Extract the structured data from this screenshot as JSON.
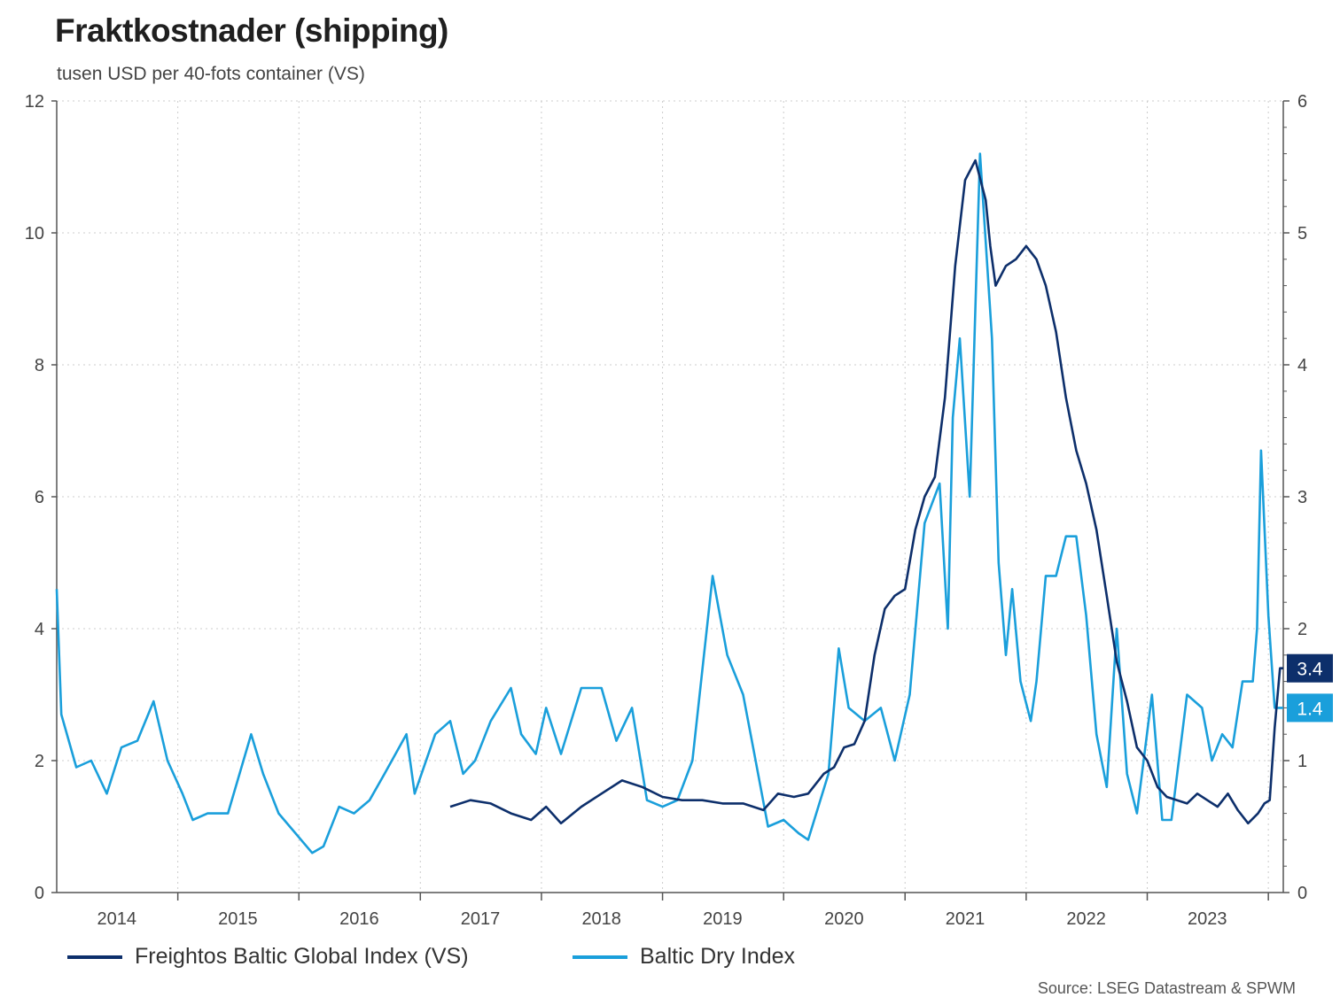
{
  "title": "Fraktkostnader (shipping)",
  "subtitle": "tusen USD per 40-fots container (VS)",
  "source": "Source: LSEG Datastream & SPWM",
  "colors": {
    "fbx": "#0d2f6b",
    "bdi": "#1a9fdb",
    "axis": "#555555",
    "grid": "#cccccc"
  },
  "chart_data": {
    "type": "line",
    "title": "Fraktkostnader (shipping)",
    "subtitle": "tusen USD per 40-fots container (VS)",
    "x_tick_labels": [
      "2014",
      "2015",
      "2016",
      "2017",
      "2018",
      "2019",
      "2020",
      "2021",
      "2022",
      "2023"
    ],
    "xlim": [
      "2014-01-01",
      "2024-02-15"
    ],
    "y_left": {
      "ticks": [
        0,
        2,
        4,
        6,
        8,
        10,
        12
      ],
      "lim": [
        0,
        12
      ]
    },
    "y_right": {
      "ticks": [
        0,
        1,
        2,
        3,
        4,
        5,
        6
      ],
      "lim": [
        0,
        6
      ]
    },
    "grid": true,
    "legend_position": "bottom",
    "end_labels": [
      {
        "series": "Freightos Baltic Global Index (VS)",
        "text": "3.4"
      },
      {
        "series": "Baltic Dry Index",
        "text": "1.4"
      }
    ],
    "series": [
      {
        "name": "Freightos Baltic Global Index (VS)",
        "axis": "left",
        "color": "#0d2f6b",
        "x": [
          "2017-04-01",
          "2017-06-01",
          "2017-08-01",
          "2017-10-01",
          "2017-12-01",
          "2018-01-15",
          "2018-03-01",
          "2018-05-01",
          "2018-07-01",
          "2018-09-01",
          "2018-11-01",
          "2019-01-01",
          "2019-03-01",
          "2019-05-01",
          "2019-07-01",
          "2019-09-01",
          "2019-11-01",
          "2019-12-15",
          "2020-02-01",
          "2020-03-15",
          "2020-05-01",
          "2020-06-01",
          "2020-07-01",
          "2020-08-01",
          "2020-09-01",
          "2020-10-01",
          "2020-11-01",
          "2020-12-01",
          "2021-01-01",
          "2021-02-01",
          "2021-03-01",
          "2021-04-01",
          "2021-05-01",
          "2021-06-01",
          "2021-07-01",
          "2021-08-01",
          "2021-09-01",
          "2021-09-15",
          "2021-10-01",
          "2021-11-01",
          "2021-12-01",
          "2022-01-01",
          "2022-02-01",
          "2022-03-01",
          "2022-04-01",
          "2022-05-01",
          "2022-06-01",
          "2022-07-01",
          "2022-08-01",
          "2022-09-01",
          "2022-10-01",
          "2022-11-01",
          "2022-12-01",
          "2023-01-01",
          "2023-02-01",
          "2023-03-01",
          "2023-04-01",
          "2023-05-01",
          "2023-06-01",
          "2023-07-01",
          "2023-08-01",
          "2023-09-01",
          "2023-10-01",
          "2023-11-01",
          "2023-12-01",
          "2023-12-20",
          "2024-01-05",
          "2024-01-20",
          "2024-02-05",
          "2024-02-15"
        ],
        "y": [
          1.3,
          1.4,
          1.35,
          1.2,
          1.1,
          1.3,
          1.05,
          1.3,
          1.5,
          1.7,
          1.6,
          1.45,
          1.4,
          1.4,
          1.35,
          1.35,
          1.25,
          1.5,
          1.45,
          1.5,
          1.8,
          1.9,
          2.2,
          2.25,
          2.6,
          3.6,
          4.3,
          4.5,
          4.6,
          5.5,
          6.0,
          6.3,
          7.5,
          9.5,
          10.8,
          11.1,
          10.5,
          9.8,
          9.2,
          9.5,
          9.6,
          9.8,
          9.6,
          9.2,
          8.5,
          7.5,
          6.7,
          6.2,
          5.5,
          4.5,
          3.5,
          2.9,
          2.2,
          2.0,
          1.6,
          1.45,
          1.4,
          1.35,
          1.5,
          1.4,
          1.3,
          1.5,
          1.25,
          1.05,
          1.2,
          1.35,
          1.4,
          2.5,
          3.4,
          3.4
        ]
      },
      {
        "name": "Baltic Dry Index",
        "axis": "right",
        "color": "#1a9fdb",
        "x": [
          "2014-01-01",
          "2014-01-15",
          "2014-03-01",
          "2014-04-15",
          "2014-06-01",
          "2014-07-15",
          "2014-09-01",
          "2014-10-20",
          "2014-12-01",
          "2015-01-15",
          "2015-02-15",
          "2015-04-01",
          "2015-06-01",
          "2015-08-10",
          "2015-09-15",
          "2015-11-01",
          "2016-02-10",
          "2016-03-15",
          "2016-05-01",
          "2016-06-15",
          "2016-08-01",
          "2016-09-15",
          "2016-11-20",
          "2016-12-15",
          "2017-02-15",
          "2017-04-01",
          "2017-05-10",
          "2017-06-15",
          "2017-08-01",
          "2017-10-01",
          "2017-11-01",
          "2017-12-15",
          "2018-01-15",
          "2018-03-01",
          "2018-05-01",
          "2018-07-01",
          "2018-08-15",
          "2018-10-01",
          "2018-11-15",
          "2019-01-01",
          "2019-02-15",
          "2019-04-01",
          "2019-06-01",
          "2019-07-15",
          "2019-09-01",
          "2019-10-01",
          "2019-11-15",
          "2020-01-01",
          "2020-02-15",
          "2020-03-15",
          "2020-05-15",
          "2020-06-15",
          "2020-07-15",
          "2020-09-01",
          "2020-10-20",
          "2020-12-01",
          "2021-01-15",
          "2021-03-01",
          "2021-04-15",
          "2021-05-10",
          "2021-05-25",
          "2021-06-15",
          "2021-07-15",
          "2021-08-15",
          "2021-09-20",
          "2021-10-10",
          "2021-11-01",
          "2021-11-20",
          "2021-12-15",
          "2022-01-15",
          "2022-02-01",
          "2022-03-01",
          "2022-04-01",
          "2022-05-01",
          "2022-06-01",
          "2022-07-01",
          "2022-08-01",
          "2022-09-01",
          "2022-10-01",
          "2022-11-01",
          "2022-12-01",
          "2023-01-15",
          "2023-02-15",
          "2023-03-15",
          "2023-05-01",
          "2023-06-15",
          "2023-07-15",
          "2023-08-15",
          "2023-09-15",
          "2023-10-15",
          "2023-11-15",
          "2023-11-28",
          "2023-12-10",
          "2024-01-01",
          "2024-01-20",
          "2024-02-15"
        ],
        "y": [
          2.3,
          1.35,
          0.95,
          1.0,
          0.75,
          1.1,
          1.15,
          1.45,
          1.0,
          0.75,
          0.55,
          0.6,
          0.6,
          1.2,
          0.9,
          0.6,
          0.3,
          0.35,
          0.65,
          0.6,
          0.7,
          0.9,
          1.2,
          0.75,
          1.2,
          1.3,
          0.9,
          1.0,
          1.3,
          1.55,
          1.2,
          1.05,
          1.4,
          1.05,
          1.55,
          1.55,
          1.15,
          1.4,
          0.7,
          0.65,
          0.7,
          1.0,
          2.4,
          1.8,
          1.5,
          1.1,
          0.5,
          0.55,
          0.45,
          0.4,
          0.9,
          1.85,
          1.4,
          1.3,
          1.4,
          1.0,
          1.5,
          2.8,
          3.1,
          2.0,
          3.6,
          4.2,
          3.0,
          5.6,
          4.2,
          2.5,
          1.8,
          2.3,
          1.6,
          1.3,
          1.6,
          2.4,
          2.4,
          2.7,
          2.7,
          2.1,
          1.2,
          0.8,
          2.0,
          0.9,
          0.6,
          1.5,
          0.55,
          0.55,
          1.5,
          1.4,
          1.0,
          1.2,
          1.1,
          1.6,
          1.6,
          2.0,
          3.35,
          2.1,
          1.4,
          1.4
        ]
      }
    ]
  }
}
